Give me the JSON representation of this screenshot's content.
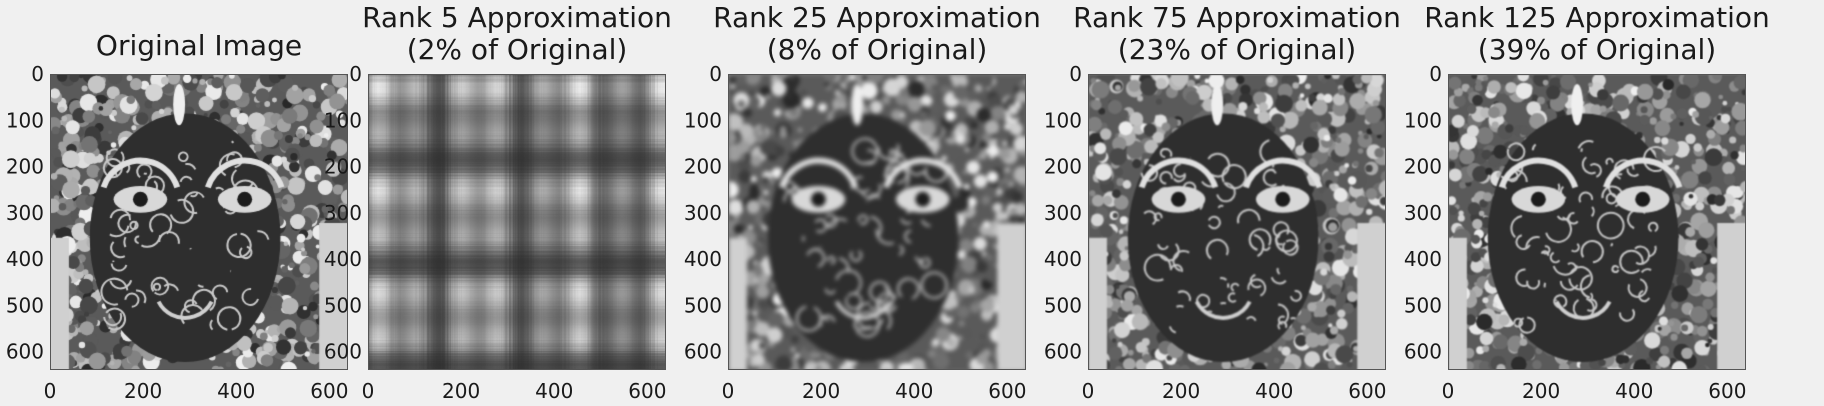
{
  "chart_data": [
    {
      "type": "heatmap",
      "title": "Original Image",
      "rank": null,
      "xticks": [
        "0",
        "200",
        "400",
        "600"
      ],
      "yticks": [
        "0",
        "100",
        "200",
        "300",
        "400",
        "500",
        "600"
      ],
      "xlim": [
        0,
        640
      ],
      "ylim": [
        640,
        0
      ],
      "colormap": "gray",
      "grid": false
    },
    {
      "type": "heatmap",
      "title": "Rank 5 Approximation\n(2% of Original)",
      "rank": 5,
      "percent_of_original": 2,
      "xticks": [
        "0",
        "200",
        "400",
        "600"
      ],
      "yticks": [
        "0",
        "100",
        "200",
        "300",
        "400",
        "500",
        "600"
      ],
      "xlim": [
        0,
        640
      ],
      "ylim": [
        640,
        0
      ],
      "colormap": "gray",
      "grid": false
    },
    {
      "type": "heatmap",
      "title": "Rank 25 Approximation\n(8% of Original)",
      "rank": 25,
      "percent_of_original": 8,
      "xticks": [
        "0",
        "200",
        "400",
        "600"
      ],
      "yticks": [
        "0",
        "100",
        "200",
        "300",
        "400",
        "500",
        "600"
      ],
      "xlim": [
        0,
        640
      ],
      "ylim": [
        640,
        0
      ],
      "colormap": "gray",
      "grid": false
    },
    {
      "type": "heatmap",
      "title": "Rank 75 Approximation\n(23% of Original)",
      "rank": 75,
      "percent_of_original": 23,
      "xticks": [
        "0",
        "200",
        "400",
        "600"
      ],
      "yticks": [
        "0",
        "100",
        "200",
        "300",
        "400",
        "500",
        "600"
      ],
      "xlim": [
        0,
        640
      ],
      "ylim": [
        640,
        0
      ],
      "colormap": "gray",
      "grid": false
    },
    {
      "type": "heatmap",
      "title": "Rank 125 Approximation\n(39% of Original)",
      "rank": 125,
      "percent_of_original": 39,
      "xticks": [
        "0",
        "200",
        "400",
        "600"
      ],
      "yticks": [
        "0",
        "100",
        "200",
        "300",
        "400",
        "500",
        "600"
      ],
      "xlim": [
        0,
        640
      ],
      "ylim": [
        640,
        0
      ],
      "colormap": "gray",
      "grid": false
    }
  ]
}
